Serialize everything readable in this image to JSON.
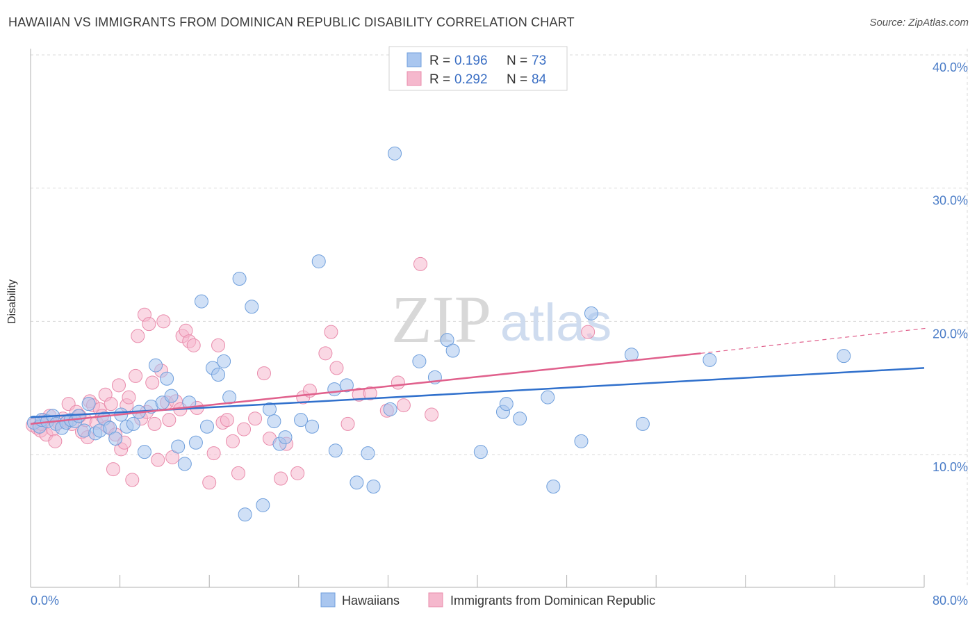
{
  "title": "HAWAIIAN VS IMMIGRANTS FROM DOMINICAN REPUBLIC DISABILITY CORRELATION CHART",
  "source": "Source: ZipAtlas.com",
  "watermark": {
    "zip": "ZIP",
    "atlas": "atlas"
  },
  "colors": {
    "blue_fill": "#a9c6ef",
    "blue_stroke": "#6f9fdc",
    "blue_line": "#3070cc",
    "pink_fill": "#f5b8cd",
    "pink_stroke": "#e98bab",
    "pink_line": "#e0608c",
    "tick_text": "#4a7cc7",
    "grid": "#d9d9d9"
  },
  "legend": {
    "r_label": "R =",
    "n_label": "N =",
    "rows": [
      {
        "r": "0.196",
        "n": "73"
      },
      {
        "r": "0.292",
        "n": "84"
      }
    ]
  },
  "bottom_legend": [
    "Hawaiians",
    "Immigrants from Dominican Republic"
  ],
  "chart_data": {
    "type": "scatter",
    "title": "HAWAIIAN VS IMMIGRANTS FROM DOMINICAN REPUBLIC DISABILITY CORRELATION CHART",
    "xlabel": "",
    "ylabel": "Disability",
    "xlim": [
      0,
      80
    ],
    "ylim": [
      0,
      42
    ],
    "x_tick_labels": [
      "0.0%",
      "80.0%"
    ],
    "y_ticks": [
      10,
      20,
      30,
      40
    ],
    "y_tick_labels": [
      "10.0%",
      "20.0%",
      "30.0%",
      "40.0%"
    ],
    "grid": true,
    "legend_position": "top-center",
    "series": [
      {
        "name": "Hawaiians",
        "r": 0.196,
        "n": 73,
        "trend": {
          "x0": 0,
          "y0": 12.8,
          "x1": 80,
          "y1": 16.5
        },
        "points": [
          [
            0.3,
            12.4
          ],
          [
            0.8,
            12.1
          ],
          [
            1.0,
            12.6
          ],
          [
            1.5,
            12.5
          ],
          [
            2.0,
            12.9
          ],
          [
            2.3,
            12.3
          ],
          [
            2.8,
            12.0
          ],
          [
            3.2,
            12.4
          ],
          [
            3.6,
            12.6
          ],
          [
            4.0,
            12.5
          ],
          [
            4.3,
            12.9
          ],
          [
            4.8,
            11.8
          ],
          [
            5.2,
            13.8
          ],
          [
            5.8,
            11.6
          ],
          [
            6.2,
            11.8
          ],
          [
            6.6,
            12.7
          ],
          [
            7.1,
            12.0
          ],
          [
            7.6,
            11.2
          ],
          [
            8.1,
            13.0
          ],
          [
            8.6,
            12.1
          ],
          [
            9.2,
            12.3
          ],
          [
            9.7,
            13.2
          ],
          [
            10.2,
            10.2
          ],
          [
            10.8,
            13.6
          ],
          [
            11.2,
            16.7
          ],
          [
            11.8,
            13.9
          ],
          [
            12.2,
            15.7
          ],
          [
            12.6,
            14.4
          ],
          [
            13.2,
            10.6
          ],
          [
            13.8,
            9.3
          ],
          [
            14.2,
            13.9
          ],
          [
            14.8,
            10.9
          ],
          [
            15.3,
            21.5
          ],
          [
            15.8,
            12.1
          ],
          [
            16.3,
            16.5
          ],
          [
            16.8,
            16.0
          ],
          [
            17.3,
            17.0
          ],
          [
            17.8,
            14.3
          ],
          [
            18.7,
            23.2
          ],
          [
            19.2,
            5.5
          ],
          [
            19.8,
            21.1
          ],
          [
            20.8,
            6.2
          ],
          [
            21.4,
            13.4
          ],
          [
            21.8,
            12.5
          ],
          [
            22.3,
            10.8
          ],
          [
            22.8,
            11.3
          ],
          [
            24.2,
            12.6
          ],
          [
            25.2,
            12.1
          ],
          [
            25.8,
            24.5
          ],
          [
            27.2,
            14.9
          ],
          [
            27.3,
            10.3
          ],
          [
            28.3,
            15.2
          ],
          [
            29.2,
            7.9
          ],
          [
            30.2,
            10.1
          ],
          [
            30.7,
            7.6
          ],
          [
            32.2,
            13.4
          ],
          [
            32.6,
            32.6
          ],
          [
            34.8,
            17.0
          ],
          [
            36.2,
            15.8
          ],
          [
            37.3,
            18.6
          ],
          [
            37.8,
            17.8
          ],
          [
            40.3,
            10.2
          ],
          [
            42.3,
            13.2
          ],
          [
            42.6,
            13.8
          ],
          [
            43.8,
            12.7
          ],
          [
            46.3,
            14.3
          ],
          [
            46.8,
            7.6
          ],
          [
            49.3,
            11.0
          ],
          [
            50.2,
            20.6
          ],
          [
            53.8,
            17.5
          ],
          [
            54.8,
            12.3
          ],
          [
            60.8,
            17.1
          ],
          [
            72.8,
            17.4
          ]
        ]
      },
      {
        "name": "Immigrants from Dominican Republic",
        "r": 0.292,
        "n": 84,
        "trend": {
          "x0": 0,
          "y0": 12.3,
          "x1": 60,
          "y1": 17.6,
          "dash_to_x": 80,
          "dash_to_y": 19.5
        },
        "points": [
          [
            0.2,
            12.2
          ],
          [
            0.6,
            12.0
          ],
          [
            0.9,
            11.8
          ],
          [
            1.2,
            12.6
          ],
          [
            1.4,
            11.5
          ],
          [
            1.7,
            12.9
          ],
          [
            2.0,
            11.9
          ],
          [
            2.2,
            11.0
          ],
          [
            2.5,
            12.4
          ],
          [
            2.9,
            12.7
          ],
          [
            3.3,
            12.5
          ],
          [
            3.4,
            13.8
          ],
          [
            3.7,
            12.3
          ],
          [
            4.1,
            13.2
          ],
          [
            4.4,
            12.9
          ],
          [
            4.6,
            11.7
          ],
          [
            4.9,
            12.6
          ],
          [
            5.1,
            11.3
          ],
          [
            5.3,
            14.0
          ],
          [
            5.6,
            13.7
          ],
          [
            5.9,
            12.4
          ],
          [
            6.2,
            13.4
          ],
          [
            6.4,
            12.9
          ],
          [
            6.7,
            14.5
          ],
          [
            6.9,
            12.1
          ],
          [
            7.2,
            13.8
          ],
          [
            7.4,
            8.9
          ],
          [
            7.6,
            11.5
          ],
          [
            7.9,
            15.2
          ],
          [
            8.1,
            10.4
          ],
          [
            8.4,
            10.9
          ],
          [
            8.6,
            13.7
          ],
          [
            8.8,
            14.3
          ],
          [
            9.1,
            8.1
          ],
          [
            9.4,
            15.9
          ],
          [
            9.6,
            18.9
          ],
          [
            9.9,
            12.7
          ],
          [
            10.2,
            20.5
          ],
          [
            10.4,
            13.2
          ],
          [
            10.6,
            19.8
          ],
          [
            10.9,
            15.4
          ],
          [
            11.1,
            12.3
          ],
          [
            11.4,
            9.6
          ],
          [
            11.7,
            16.3
          ],
          [
            11.9,
            20.0
          ],
          [
            12.2,
            13.9
          ],
          [
            12.4,
            12.6
          ],
          [
            12.7,
            9.8
          ],
          [
            13.0,
            14.0
          ],
          [
            13.4,
            13.4
          ],
          [
            13.6,
            18.9
          ],
          [
            13.9,
            19.3
          ],
          [
            14.2,
            18.5
          ],
          [
            14.6,
            18.2
          ],
          [
            14.9,
            13.5
          ],
          [
            16.0,
            7.9
          ],
          [
            16.4,
            10.1
          ],
          [
            16.8,
            18.2
          ],
          [
            17.2,
            12.4
          ],
          [
            17.6,
            12.6
          ],
          [
            18.1,
            11.0
          ],
          [
            18.6,
            8.6
          ],
          [
            19.1,
            11.9
          ],
          [
            20.1,
            12.7
          ],
          [
            20.9,
            16.1
          ],
          [
            21.4,
            11.2
          ],
          [
            22.4,
            8.2
          ],
          [
            22.9,
            10.8
          ],
          [
            23.9,
            8.6
          ],
          [
            24.4,
            14.3
          ],
          [
            25.0,
            14.8
          ],
          [
            26.4,
            17.6
          ],
          [
            26.9,
            19.2
          ],
          [
            27.4,
            16.5
          ],
          [
            28.4,
            12.3
          ],
          [
            29.4,
            14.5
          ],
          [
            30.4,
            14.6
          ],
          [
            31.9,
            13.3
          ],
          [
            32.9,
            15.4
          ],
          [
            33.4,
            13.7
          ],
          [
            34.9,
            24.3
          ],
          [
            35.9,
            13.0
          ],
          [
            49.9,
            19.2
          ],
          [
            1.0,
            12.3
          ]
        ]
      }
    ]
  }
}
